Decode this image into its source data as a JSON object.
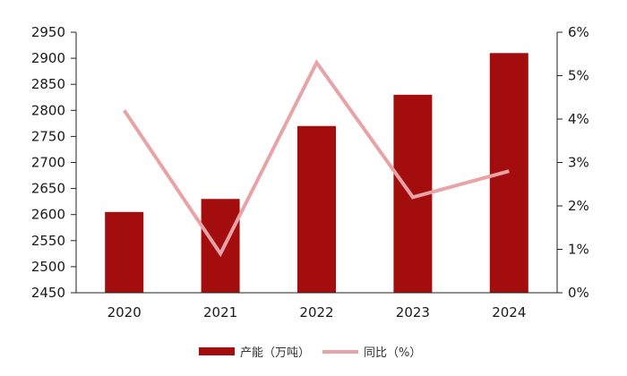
{
  "chart_data": {
    "type": "bar",
    "categories": [
      "2020",
      "2021",
      "2022",
      "2023",
      "2024"
    ],
    "series": [
      {
        "name": "产能（万吨）",
        "type": "bar",
        "axis": "left",
        "color": "#a30d0d",
        "values": [
          2605,
          2630,
          2770,
          2830,
          2910
        ]
      },
      {
        "name": "同比（%）",
        "type": "line",
        "axis": "right",
        "color": "#e8a3a6",
        "values": [
          4.2,
          0.9,
          5.3,
          2.2,
          2.8
        ]
      }
    ],
    "y_left": {
      "min": 2450,
      "max": 2950,
      "step": 50,
      "tick_labels": [
        "2450",
        "2500",
        "2550",
        "2600",
        "2650",
        "2700",
        "2750",
        "2800",
        "2850",
        "2900",
        "2950"
      ]
    },
    "y_right": {
      "min": 0,
      "max": 6,
      "step": 1,
      "tick_labels": [
        "0%",
        "1%",
        "2%",
        "3%",
        "4%",
        "5%",
        "6%"
      ]
    },
    "grid": false,
    "legend_position": "bottom",
    "title": ""
  }
}
